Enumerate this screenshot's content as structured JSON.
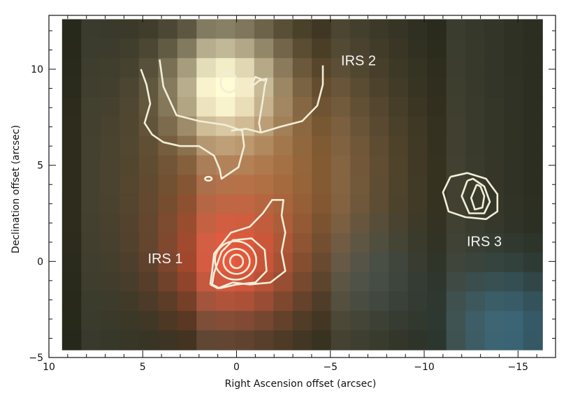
{
  "chart_data": {
    "type": "heatmap",
    "title": "",
    "xlabel": "Right Ascension offset (arcsec)",
    "ylabel": "Declination offset (arcsec)",
    "xlim": [
      10,
      -17
    ],
    "ylim": [
      -5,
      12.8
    ],
    "x_ticks": [
      10,
      5,
      0,
      -5,
      -10,
      -15
    ],
    "x_tick_labels": [
      "10",
      "5",
      "0",
      "−5",
      "−10",
      "−15"
    ],
    "y_ticks": [
      -5,
      0,
      5,
      10
    ],
    "y_tick_labels": [
      "−5",
      "0",
      "5",
      "10"
    ],
    "image_extent": {
      "x": [
        9.3,
        -16.3
      ],
      "y": [
        -4.6,
        12.6
      ]
    },
    "sources": [
      {
        "name": "IRS 1",
        "x": 0.0,
        "y": 0.0,
        "label_x": 3.8,
        "label_y": -0.1
      },
      {
        "name": "IRS 2",
        "x": 0.5,
        "y": 9.3,
        "label_x": -6.5,
        "label_y": 10.2
      },
      {
        "name": "IRS 3",
        "x": -12.7,
        "y": 3.4,
        "label_x": -13.2,
        "label_y": 0.8
      }
    ],
    "contour_color": "#f2eed8",
    "background_colors": {
      "bright": "#fbf6d0",
      "red": "#e8533a",
      "orange": "#c9864c",
      "dark": "#2e3124",
      "blue": "#3d6f86"
    }
  }
}
